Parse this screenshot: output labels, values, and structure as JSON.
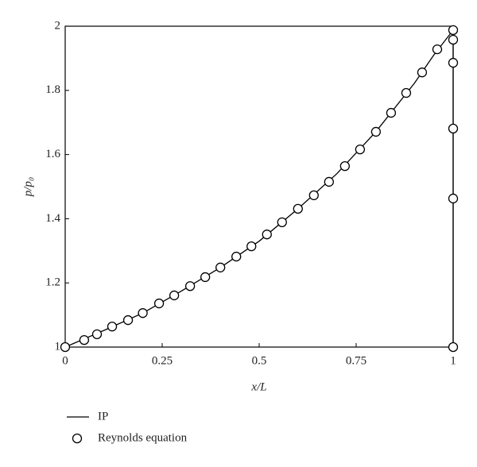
{
  "chart_data": {
    "type": "line",
    "xlabel": "x/L",
    "ylabel": "p/p₀",
    "xlim": [
      0,
      1
    ],
    "ylim": [
      1,
      2
    ],
    "xticks": [
      0,
      0.25,
      0.5,
      0.75,
      1
    ],
    "yticks": [
      1,
      1.2,
      1.4,
      1.6,
      1.8,
      2
    ],
    "legend": "bottom-left",
    "series": [
      {
        "name": "IP",
        "type": "line",
        "color": "#000000",
        "x": [
          0,
          0.1,
          0.2,
          0.3,
          0.4,
          0.5,
          0.6,
          0.7,
          0.8,
          0.9,
          0.95,
          1,
          1
        ],
        "values": [
          1.0,
          1.052,
          1.106,
          1.175,
          1.248,
          1.33,
          1.431,
          1.54,
          1.67,
          1.822,
          1.91,
          1.988,
          1.0
        ]
      },
      {
        "name": "Reynolds equation",
        "type": "scatter",
        "color": "#000000",
        "x": [
          0,
          0.049,
          0.082,
          0.121,
          0.162,
          0.2,
          0.242,
          0.281,
          0.322,
          0.361,
          0.4,
          0.441,
          0.48,
          0.52,
          0.559,
          0.6,
          0.641,
          0.68,
          0.721,
          0.76,
          0.801,
          0.84,
          0.879,
          0.92,
          0.959,
          1,
          1,
          1,
          1,
          1,
          1
        ],
        "values": [
          1.0,
          1.022,
          1.04,
          1.064,
          1.084,
          1.106,
          1.136,
          1.161,
          1.19,
          1.218,
          1.248,
          1.282,
          1.314,
          1.351,
          1.389,
          1.431,
          1.473,
          1.515,
          1.564,
          1.616,
          1.671,
          1.73,
          1.792,
          1.856,
          1.928,
          1.988,
          1.958,
          1.886,
          1.681,
          1.463,
          1.0
        ]
      }
    ]
  }
}
